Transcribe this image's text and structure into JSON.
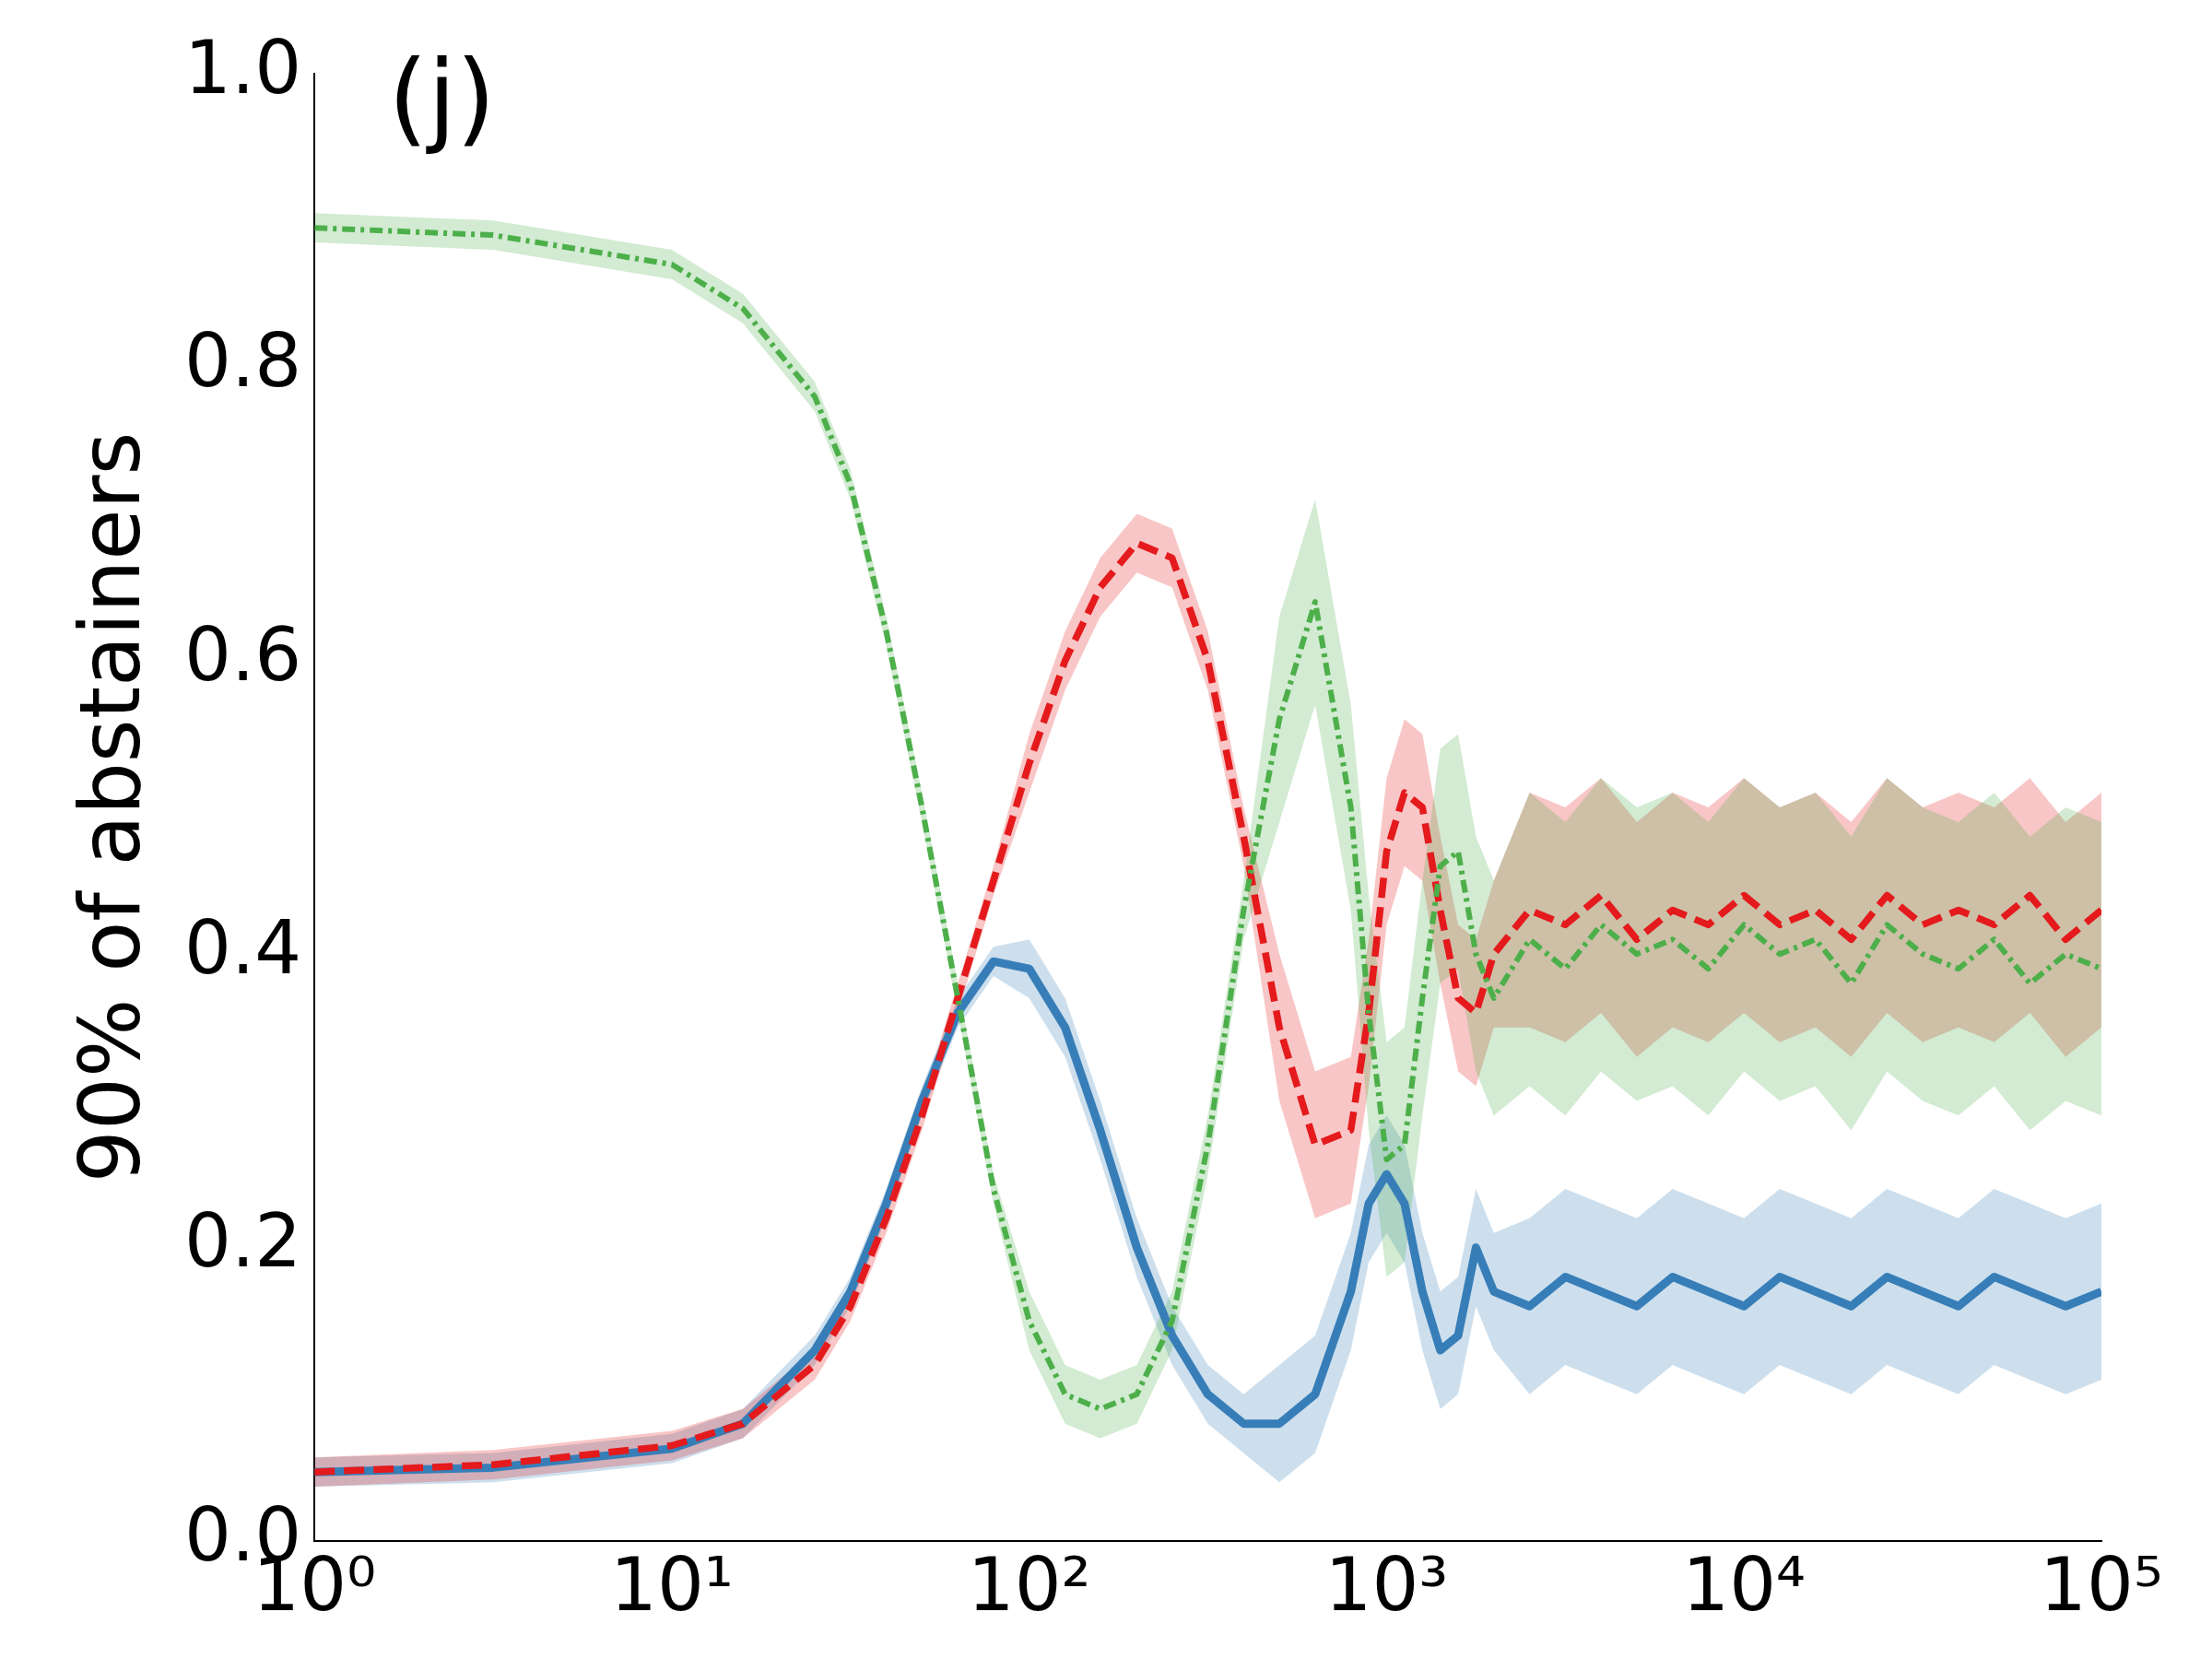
{
  "chart_data": {
    "type": "line",
    "ylabel": "90% of abstainers",
    "annotations": [
      "(j)"
    ],
    "log": "x",
    "grid": false,
    "legend": false,
    "marker": "none",
    "xlim": [
      1,
      100000
    ],
    "ylim": [
      0,
      1
    ],
    "xticks": [
      {
        "value": 1,
        "label": "10⁰"
      },
      {
        "value": 10,
        "label": "10¹"
      },
      {
        "value": 100,
        "label": "10²"
      },
      {
        "value": 1000,
        "label": "10³"
      },
      {
        "value": 10000,
        "label": "10⁴"
      },
      {
        "value": 100000,
        "label": "10⁵"
      }
    ],
    "yticks": [
      {
        "value": 0,
        "label": "0.0"
      },
      {
        "value": 0.2,
        "label": "0.2"
      },
      {
        "value": 0.4,
        "label": "0.4"
      },
      {
        "value": 0.6,
        "label": "0.6"
      },
      {
        "value": 0.8,
        "label": "0.8"
      },
      {
        "value": 1,
        "label": "1.0"
      }
    ],
    "x": [
      1,
      3.16,
      10,
      15.8,
      25.1,
      31.6,
      39.8,
      50.1,
      63.1,
      79.4,
      100,
      126,
      158,
      200,
      251,
      316,
      398,
      501,
      631,
      794,
      891,
      1000,
      1122,
      1259,
      1413,
      1585,
      1778,
      1995,
      2512,
      3162,
      3981,
      5012,
      6310,
      7943,
      10000,
      12589,
      15849,
      19953,
      25119,
      31623,
      39811,
      50119,
      63096,
      79433,
      100000
    ],
    "series": [
      {
        "color": "#4daf4a",
        "line_style": "dotted",
        "values": [
          0.895,
          0.89,
          0.87,
          0.84,
          0.78,
          0.72,
          0.62,
          0.5,
          0.37,
          0.24,
          0.15,
          0.1,
          0.09,
          0.1,
          0.15,
          0.27,
          0.43,
          0.56,
          0.64,
          0.5,
          0.36,
          0.26,
          0.27,
          0.37,
          0.46,
          0.47,
          0.4,
          0.37,
          0.41,
          0.39,
          0.42,
          0.4,
          0.41,
          0.39,
          0.42,
          0.4,
          0.41,
          0.38,
          0.42,
          0.4,
          0.39,
          0.41,
          0.38,
          0.4,
          0.39
        ],
        "lower": [
          0.885,
          0.88,
          0.86,
          0.83,
          0.77,
          0.71,
          0.61,
          0.49,
          0.36,
          0.23,
          0.13,
          0.08,
          0.07,
          0.08,
          0.13,
          0.25,
          0.41,
          0.49,
          0.57,
          0.43,
          0.28,
          0.18,
          0.19,
          0.29,
          0.38,
          0.39,
          0.32,
          0.29,
          0.31,
          0.29,
          0.32,
          0.3,
          0.31,
          0.29,
          0.32,
          0.3,
          0.31,
          0.28,
          0.32,
          0.3,
          0.29,
          0.31,
          0.28,
          0.3,
          0.29
        ],
        "upper": [
          0.905,
          0.9,
          0.88,
          0.85,
          0.79,
          0.73,
          0.63,
          0.51,
          0.38,
          0.25,
          0.17,
          0.12,
          0.11,
          0.12,
          0.17,
          0.29,
          0.45,
          0.63,
          0.71,
          0.57,
          0.44,
          0.34,
          0.35,
          0.45,
          0.54,
          0.55,
          0.48,
          0.45,
          0.51,
          0.49,
          0.52,
          0.5,
          0.51,
          0.49,
          0.52,
          0.5,
          0.51,
          0.48,
          0.52,
          0.5,
          0.49,
          0.51,
          0.48,
          0.5,
          0.49
        ]
      },
      {
        "color": "#e41a1c",
        "line_style": "dashed",
        "values": [
          0.047,
          0.052,
          0.065,
          0.08,
          0.12,
          0.16,
          0.22,
          0.29,
          0.37,
          0.45,
          0.53,
          0.6,
          0.65,
          0.68,
          0.67,
          0.6,
          0.48,
          0.35,
          0.27,
          0.28,
          0.36,
          0.47,
          0.51,
          0.5,
          0.43,
          0.37,
          0.36,
          0.4,
          0.43,
          0.42,
          0.44,
          0.41,
          0.43,
          0.42,
          0.44,
          0.42,
          0.43,
          0.41,
          0.44,
          0.42,
          0.43,
          0.42,
          0.44,
          0.41,
          0.43
        ],
        "lower": [
          0.037,
          0.042,
          0.055,
          0.07,
          0.11,
          0.15,
          0.21,
          0.28,
          0.36,
          0.44,
          0.51,
          0.58,
          0.63,
          0.66,
          0.65,
          0.58,
          0.46,
          0.3,
          0.22,
          0.23,
          0.31,
          0.42,
          0.46,
          0.45,
          0.38,
          0.32,
          0.31,
          0.35,
          0.35,
          0.34,
          0.36,
          0.33,
          0.35,
          0.34,
          0.36,
          0.34,
          0.35,
          0.33,
          0.36,
          0.34,
          0.35,
          0.34,
          0.36,
          0.33,
          0.35
        ],
        "upper": [
          0.057,
          0.062,
          0.075,
          0.09,
          0.13,
          0.17,
          0.23,
          0.3,
          0.38,
          0.46,
          0.55,
          0.62,
          0.67,
          0.7,
          0.69,
          0.62,
          0.5,
          0.4,
          0.32,
          0.33,
          0.41,
          0.52,
          0.56,
          0.55,
          0.48,
          0.42,
          0.41,
          0.45,
          0.51,
          0.5,
          0.52,
          0.49,
          0.51,
          0.5,
          0.52,
          0.5,
          0.51,
          0.49,
          0.52,
          0.5,
          0.51,
          0.5,
          0.52,
          0.49,
          0.51
        ]
      },
      {
        "color": "#377eb8",
        "line_style": "solid",
        "values": [
          0.047,
          0.05,
          0.063,
          0.08,
          0.13,
          0.17,
          0.23,
          0.3,
          0.36,
          0.395,
          0.39,
          0.35,
          0.28,
          0.2,
          0.14,
          0.1,
          0.08,
          0.08,
          0.1,
          0.17,
          0.23,
          0.25,
          0.23,
          0.17,
          0.13,
          0.14,
          0.2,
          0.17,
          0.16,
          0.18,
          0.17,
          0.16,
          0.18,
          0.17,
          0.16,
          0.18,
          0.17,
          0.16,
          0.18,
          0.17,
          0.16,
          0.18,
          0.17,
          0.16,
          0.17
        ],
        "lower": [
          0.037,
          0.04,
          0.053,
          0.07,
          0.12,
          0.16,
          0.22,
          0.29,
          0.35,
          0.385,
          0.37,
          0.33,
          0.26,
          0.18,
          0.12,
          0.08,
          0.06,
          0.04,
          0.06,
          0.13,
          0.19,
          0.21,
          0.19,
          0.13,
          0.09,
          0.1,
          0.16,
          0.13,
          0.1,
          0.12,
          0.11,
          0.1,
          0.12,
          0.11,
          0.1,
          0.12,
          0.11,
          0.1,
          0.12,
          0.11,
          0.1,
          0.12,
          0.11,
          0.1,
          0.11
        ],
        "upper": [
          0.057,
          0.06,
          0.073,
          0.09,
          0.14,
          0.18,
          0.24,
          0.31,
          0.37,
          0.405,
          0.41,
          0.37,
          0.3,
          0.22,
          0.16,
          0.12,
          0.1,
          0.12,
          0.14,
          0.21,
          0.27,
          0.29,
          0.27,
          0.21,
          0.17,
          0.18,
          0.24,
          0.21,
          0.22,
          0.24,
          0.23,
          0.22,
          0.24,
          0.23,
          0.22,
          0.24,
          0.23,
          0.22,
          0.24,
          0.23,
          0.22,
          0.24,
          0.23,
          0.22,
          0.23
        ]
      }
    ]
  }
}
